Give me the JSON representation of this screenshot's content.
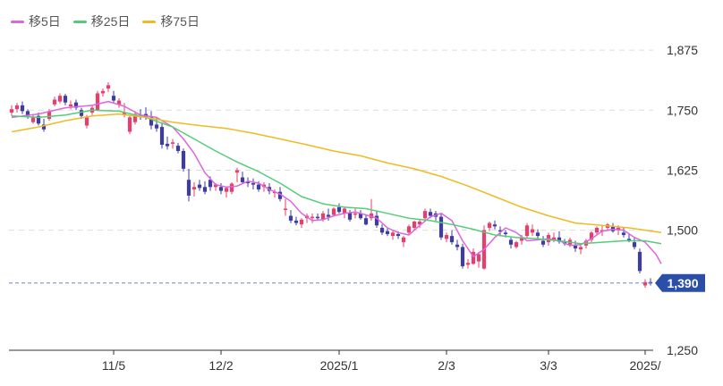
{
  "chart_data": {
    "type": "candlestick",
    "legend": [
      {
        "label": "移5日",
        "color": "#dd66dd"
      },
      {
        "label": "移25日",
        "color": "#55cc77"
      },
      {
        "label": "移75日",
        "color": "#eebb22"
      }
    ],
    "colors": {
      "up": "#e83e6e",
      "down": "#3d3ba6",
      "grid": "#dddddd",
      "axis": "#333333",
      "badge": "#2b4fa8",
      "price_line": "#6688cc"
    },
    "ylim": [
      1250,
      1905
    ],
    "yticks": [
      {
        "value": 1875,
        "label": "1,875"
      },
      {
        "value": 1750,
        "label": "1,750"
      },
      {
        "value": 1625,
        "label": "1,625"
      },
      {
        "value": 1500,
        "label": "1,500"
      },
      {
        "value": 1250,
        "label": "1,250"
      }
    ],
    "xticks": [
      {
        "index": 19,
        "label": "11/5"
      },
      {
        "index": 39,
        "label": "12/2"
      },
      {
        "index": 61,
        "label": "2025/1"
      },
      {
        "index": 81,
        "label": "2/3"
      },
      {
        "index": 100,
        "label": "3/3"
      },
      {
        "index": 118,
        "label": "2025/"
      }
    ],
    "current_price": {
      "value": 1390,
      "label": "1,390"
    },
    "ohlc": [
      [
        1745,
        1760,
        1738,
        1752
      ],
      [
        1752,
        1765,
        1745,
        1760
      ],
      [
        1760,
        1768,
        1742,
        1748
      ],
      [
        1748,
        1752,
        1732,
        1738
      ],
      [
        1725,
        1742,
        1722,
        1735
      ],
      [
        1738,
        1745,
        1718,
        1722
      ],
      [
        1720,
        1732,
        1705,
        1710
      ],
      [
        1732,
        1752,
        1728,
        1748
      ],
      [
        1762,
        1778,
        1758,
        1772
      ],
      [
        1768,
        1785,
        1764,
        1780
      ],
      [
        1780,
        1784,
        1760,
        1766
      ],
      [
        1758,
        1770,
        1752,
        1762
      ],
      [
        1766,
        1772,
        1750,
        1755
      ],
      [
        1750,
        1755,
        1732,
        1738
      ],
      [
        1718,
        1740,
        1712,
        1735
      ],
      [
        1745,
        1760,
        1740,
        1755
      ],
      [
        1750,
        1790,
        1748,
        1785
      ],
      [
        1785,
        1795,
        1778,
        1790
      ],
      [
        1795,
        1808,
        1788,
        1802
      ],
      [
        1780,
        1790,
        1765,
        1770
      ],
      [
        1762,
        1775,
        1755,
        1770
      ],
      [
        1740,
        1765,
        1735,
        1745
      ],
      [
        1705,
        1740,
        1700,
        1735
      ],
      [
        1725,
        1748,
        1720,
        1742
      ],
      [
        1740,
        1752,
        1730,
        1738
      ],
      [
        1742,
        1756,
        1730,
        1736
      ],
      [
        1735,
        1748,
        1710,
        1718
      ],
      [
        1720,
        1735,
        1705,
        1712
      ],
      [
        1715,
        1725,
        1670,
        1678
      ],
      [
        1680,
        1695,
        1668,
        1675
      ],
      [
        1680,
        1690,
        1670,
        1683
      ],
      [
        1676,
        1682,
        1660,
        1665
      ],
      [
        1665,
        1670,
        1622,
        1628
      ],
      [
        1605,
        1628,
        1560,
        1572
      ],
      [
        1585,
        1600,
        1570,
        1590
      ],
      [
        1595,
        1605,
        1582,
        1588
      ],
      [
        1590,
        1602,
        1575,
        1580
      ],
      [
        1605,
        1612,
        1582,
        1590
      ],
      [
        1590,
        1598,
        1582,
        1595
      ],
      [
        1590,
        1598,
        1575,
        1582
      ],
      [
        1580,
        1590,
        1568,
        1588
      ],
      [
        1580,
        1600,
        1575,
        1597
      ],
      [
        1620,
        1630,
        1600,
        1625
      ],
      [
        1610,
        1622,
        1598,
        1600
      ],
      [
        1602,
        1610,
        1590,
        1598
      ],
      [
        1598,
        1608,
        1585,
        1595
      ],
      [
        1595,
        1602,
        1580,
        1585
      ],
      [
        1590,
        1600,
        1580,
        1595
      ],
      [
        1590,
        1598,
        1575,
        1582
      ],
      [
        1578,
        1585,
        1568,
        1580
      ],
      [
        1580,
        1590,
        1560,
        1565
      ],
      [
        1545,
        1565,
        1530,
        1545
      ],
      [
        1530,
        1542,
        1515,
        1520
      ],
      [
        1520,
        1528,
        1510,
        1515
      ],
      [
        1512,
        1525,
        1505,
        1522
      ],
      [
        1525,
        1535,
        1515,
        1530
      ],
      [
        1525,
        1535,
        1515,
        1528
      ],
      [
        1528,
        1535,
        1520,
        1525
      ],
      [
        1522,
        1540,
        1518,
        1535
      ],
      [
        1532,
        1545,
        1520,
        1528
      ],
      [
        1532,
        1548,
        1528,
        1545
      ],
      [
        1548,
        1556,
        1535,
        1538
      ],
      [
        1535,
        1548,
        1525,
        1545
      ],
      [
        1536,
        1542,
        1518,
        1522
      ],
      [
        1535,
        1545,
        1525,
        1535
      ],
      [
        1535,
        1542,
        1522,
        1525
      ],
      [
        1525,
        1532,
        1510,
        1512
      ],
      [
        1525,
        1565,
        1520,
        1535
      ],
      [
        1530,
        1540,
        1505,
        1510
      ],
      [
        1505,
        1512,
        1490,
        1495
      ],
      [
        1498,
        1505,
        1488,
        1492
      ],
      [
        1488,
        1500,
        1480,
        1495
      ],
      [
        1492,
        1498,
        1482,
        1488
      ],
      [
        1475,
        1488,
        1465,
        1485
      ],
      [
        1495,
        1512,
        1490,
        1508
      ],
      [
        1505,
        1520,
        1500,
        1518
      ],
      [
        1512,
        1522,
        1505,
        1518
      ],
      [
        1525,
        1545,
        1520,
        1540
      ],
      [
        1538,
        1545,
        1525,
        1530
      ],
      [
        1535,
        1540,
        1520,
        1528
      ],
      [
        1528,
        1535,
        1480,
        1485
      ],
      [
        1482,
        1495,
        1475,
        1490
      ],
      [
        1488,
        1500,
        1470,
        1475
      ],
      [
        1470,
        1480,
        1458,
        1465
      ],
      [
        1465,
        1472,
        1420,
        1425
      ],
      [
        1428,
        1440,
        1420,
        1432
      ],
      [
        1430,
        1462,
        1428,
        1455
      ],
      [
        1435,
        1455,
        1422,
        1450
      ],
      [
        1420,
        1510,
        1418,
        1500
      ],
      [
        1505,
        1518,
        1498,
        1515
      ],
      [
        1512,
        1520,
        1502,
        1508
      ],
      [
        1500,
        1508,
        1490,
        1498
      ],
      [
        1495,
        1500,
        1485,
        1492
      ],
      [
        1480,
        1485,
        1462,
        1470
      ],
      [
        1465,
        1478,
        1462,
        1475
      ],
      [
        1478,
        1490,
        1470,
        1485
      ],
      [
        1488,
        1515,
        1482,
        1510
      ],
      [
        1495,
        1512,
        1488,
        1502
      ],
      [
        1495,
        1502,
        1480,
        1488
      ],
      [
        1478,
        1488,
        1465,
        1470
      ],
      [
        1475,
        1495,
        1468,
        1490
      ],
      [
        1480,
        1495,
        1475,
        1485
      ],
      [
        1485,
        1498,
        1472,
        1476
      ],
      [
        1476,
        1482,
        1468,
        1472
      ],
      [
        1470,
        1485,
        1465,
        1480
      ],
      [
        1468,
        1478,
        1455,
        1462
      ],
      [
        1460,
        1472,
        1450,
        1465
      ],
      [
        1468,
        1482,
        1462,
        1478
      ],
      [
        1480,
        1498,
        1475,
        1495
      ],
      [
        1495,
        1508,
        1490,
        1505
      ],
      [
        1498,
        1510,
        1488,
        1500
      ],
      [
        1505,
        1515,
        1498,
        1512
      ],
      [
        1508,
        1515,
        1495,
        1498
      ],
      [
        1500,
        1510,
        1490,
        1505
      ],
      [
        1495,
        1505,
        1485,
        1490
      ],
      [
        1482,
        1492,
        1475,
        1480
      ],
      [
        1475,
        1485,
        1460,
        1465
      ],
      [
        1455,
        1462,
        1410,
        1415
      ],
      [
        1385,
        1398,
        1380,
        1392
      ],
      [
        1392,
        1400,
        1385,
        1390
      ]
    ],
    "series": [
      {
        "name": "移5日",
        "color": "#dd66dd",
        "x": [
          0,
          5,
          10,
          15,
          18,
          21,
          24,
          27,
          30,
          32,
          34,
          36,
          38,
          40,
          42,
          44,
          46,
          48,
          50,
          52,
          54,
          56,
          58,
          60,
          62,
          64,
          66,
          68,
          70,
          72,
          74,
          76,
          78,
          80,
          82,
          84,
          86,
          88,
          90,
          92,
          94,
          96,
          98,
          100,
          102,
          104,
          106,
          108,
          110,
          112,
          114,
          116,
          118,
          120,
          121
        ],
        "values": [
          1735,
          1742,
          1755,
          1760,
          1768,
          1758,
          1740,
          1735,
          1715,
          1690,
          1660,
          1620,
          1595,
          1590,
          1592,
          1602,
          1598,
          1585,
          1575,
          1560,
          1535,
          1520,
          1522,
          1530,
          1535,
          1538,
          1532,
          1525,
          1505,
          1495,
          1490,
          1510,
          1528,
          1535,
          1520,
          1478,
          1445,
          1460,
          1485,
          1505,
          1495,
          1478,
          1480,
          1482,
          1478,
          1468,
          1470,
          1482,
          1498,
          1502,
          1500,
          1485,
          1475,
          1450,
          1430
        ]
      },
      {
        "name": "移25日",
        "color": "#55cc77",
        "x": [
          0,
          5,
          10,
          15,
          20,
          25,
          30,
          34,
          38,
          42,
          46,
          50,
          54,
          58,
          62,
          66,
          70,
          74,
          78,
          82,
          86,
          90,
          94,
          98,
          102,
          106,
          110,
          114,
          118,
          121
        ],
        "values": [
          1738,
          1735,
          1740,
          1750,
          1748,
          1735,
          1715,
          1690,
          1665,
          1642,
          1622,
          1598,
          1570,
          1555,
          1548,
          1545,
          1535,
          1525,
          1520,
          1512,
          1502,
          1490,
          1485,
          1482,
          1478,
          1472,
          1475,
          1478,
          1478,
          1472
        ]
      },
      {
        "name": "移75日",
        "color": "#eebb22",
        "x": [
          0,
          5,
          10,
          15,
          20,
          25,
          30,
          35,
          40,
          45,
          50,
          55,
          60,
          65,
          70,
          75,
          80,
          85,
          90,
          95,
          100,
          105,
          110,
          115,
          118,
          121
        ],
        "values": [
          1705,
          1715,
          1728,
          1738,
          1742,
          1735,
          1725,
          1718,
          1712,
          1702,
          1690,
          1678,
          1665,
          1655,
          1640,
          1628,
          1612,
          1592,
          1570,
          1548,
          1530,
          1515,
          1510,
          1505,
          1500,
          1495
        ]
      }
    ]
  }
}
